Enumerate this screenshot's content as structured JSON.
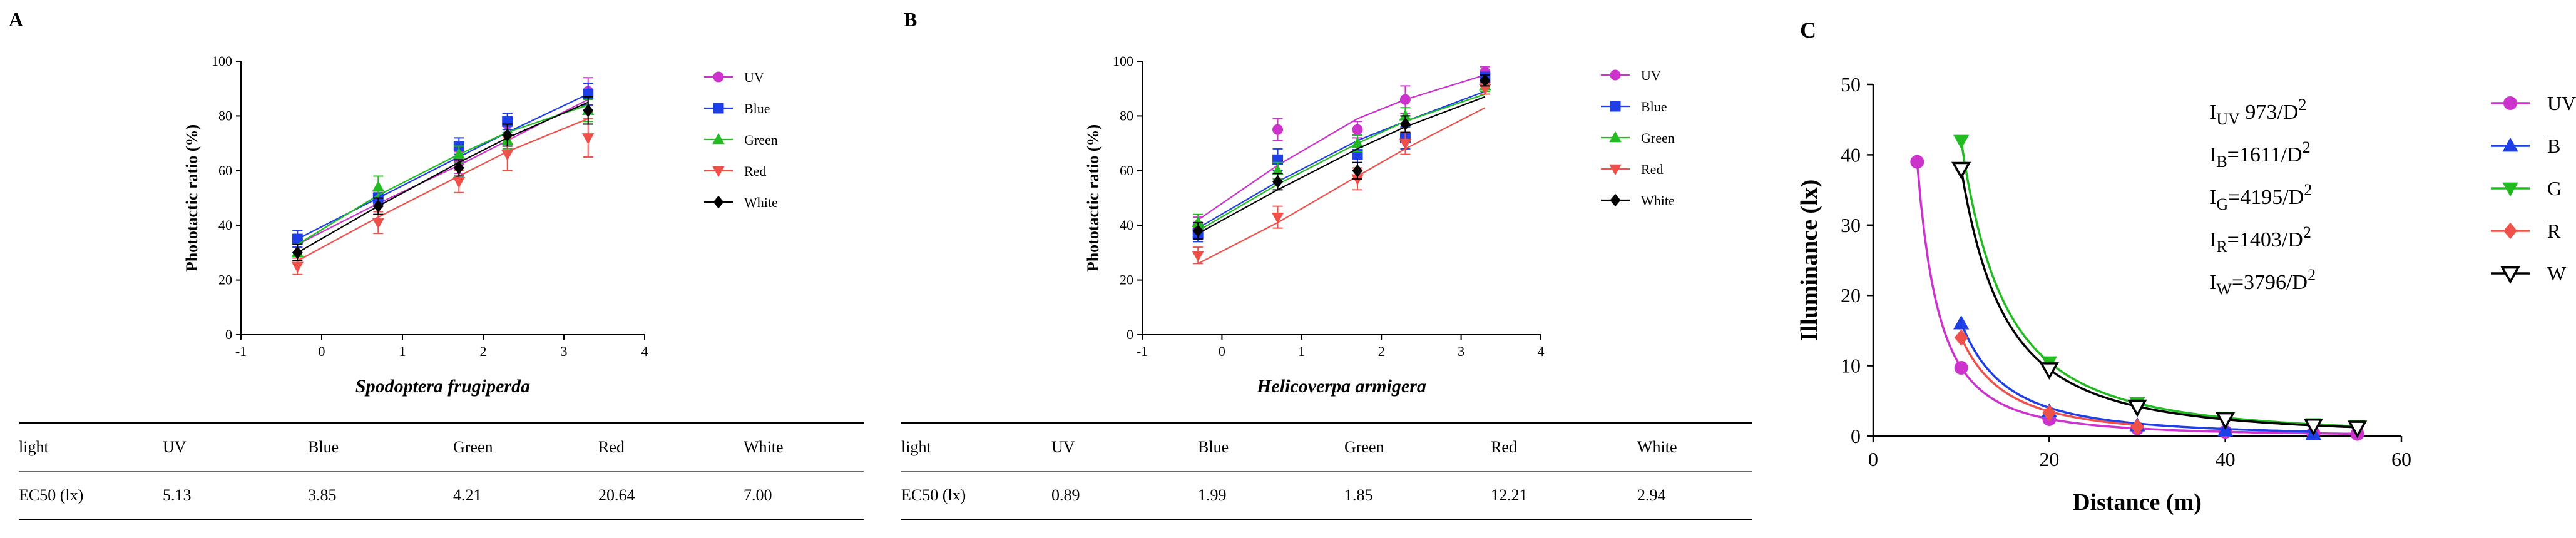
{
  "colors": {
    "UV": "#cc33cc",
    "Blue": "#1f3fe6",
    "Green": "#22bb22",
    "Red": "#f0504a",
    "White": "#000000"
  },
  "chart_data": [
    {
      "type": "scatter",
      "panel": "A",
      "title": "",
      "xlabel": "Spodoptera frugiperda",
      "ylabel": "Phototactic ratio (%)",
      "xlim": [
        -1,
        4
      ],
      "ylim": [
        0,
        100
      ],
      "xticks": [
        -1,
        0,
        1,
        2,
        3,
        4
      ],
      "yticks": [
        0,
        20,
        40,
        60,
        80,
        100
      ],
      "legend_position": "right",
      "series": [
        {
          "name": "UV",
          "key": "UV",
          "marker": "circle",
          "x": [
            -0.3,
            0.7,
            1.7,
            2.3,
            3.3
          ],
          "y": [
            35,
            48,
            63,
            77,
            89
          ],
          "err": [
            3,
            4,
            4,
            4,
            5
          ],
          "fit": [
            33,
            48,
            62,
            71,
            86
          ]
        },
        {
          "name": "Blue",
          "key": "Blue",
          "marker": "square",
          "x": [
            -0.3,
            0.7,
            1.7,
            2.3,
            3.3
          ],
          "y": [
            35,
            50,
            69,
            78,
            88
          ],
          "err": [
            3,
            3,
            3,
            3,
            4
          ],
          "fit": [
            35,
            50,
            65,
            74,
            88
          ]
        },
        {
          "name": "Green",
          "key": "Green",
          "marker": "triangle-up",
          "x": [
            -0.3,
            0.7,
            1.7,
            2.3,
            3.3
          ],
          "y": [
            30,
            54,
            66,
            71,
            82
          ],
          "err": [
            3,
            4,
            3,
            3,
            4
          ],
          "fit": [
            33,
            51,
            66,
            74,
            84
          ]
        },
        {
          "name": "Red",
          "key": "Red",
          "marker": "triangle-down",
          "x": [
            -0.3,
            0.7,
            1.7,
            2.3,
            3.3
          ],
          "y": [
            25,
            41,
            56,
            66,
            72
          ],
          "err": [
            3,
            4,
            4,
            6,
            7
          ],
          "fit": [
            27,
            43,
            58,
            67,
            79
          ]
        },
        {
          "name": "White",
          "key": "White",
          "marker": "diamond",
          "x": [
            -0.3,
            0.7,
            1.7,
            2.3,
            3.3
          ],
          "y": [
            30,
            47,
            61,
            73,
            82
          ],
          "err": [
            3,
            3,
            3,
            4,
            5
          ],
          "fit": [
            30,
            47,
            63,
            72,
            85
          ]
        }
      ]
    },
    {
      "type": "scatter",
      "panel": "B",
      "title": "",
      "xlabel": "Helicoverpa armigera",
      "ylabel": "Phototactic ratio (%)",
      "xlim": [
        -1,
        4
      ],
      "ylim": [
        0,
        100
      ],
      "xticks": [
        -1,
        0,
        1,
        2,
        3,
        4
      ],
      "yticks": [
        0,
        20,
        40,
        60,
        80,
        100
      ],
      "legend_position": "right",
      "series": [
        {
          "name": "UV",
          "key": "UV",
          "marker": "circle",
          "x": [
            -0.3,
            0.7,
            1.7,
            2.3,
            3.3
          ],
          "y": [
            40,
            75,
            75,
            86,
            96
          ],
          "err": [
            3,
            4,
            3,
            5,
            2
          ],
          "fit": [
            42,
            62,
            79,
            86,
            95
          ]
        },
        {
          "name": "Blue",
          "key": "Blue",
          "marker": "square",
          "x": [
            -0.3,
            0.7,
            1.7,
            2.3,
            3.3
          ],
          "y": [
            37,
            64,
            66,
            72,
            94
          ],
          "err": [
            3,
            4,
            3,
            4,
            2
          ],
          "fit": [
            39,
            56,
            71,
            78,
            89
          ]
        },
        {
          "name": "Green",
          "key": "Green",
          "marker": "triangle-up",
          "x": [
            -0.3,
            0.7,
            1.7,
            2.3,
            3.3
          ],
          "y": [
            41,
            60,
            70,
            80,
            91
          ],
          "err": [
            3,
            3,
            3,
            3,
            2
          ],
          "fit": [
            38,
            55,
            70,
            78,
            88
          ]
        },
        {
          "name": "Red",
          "key": "Red",
          "marker": "triangle-down",
          "x": [
            -0.3,
            0.7,
            1.7,
            2.3,
            3.3
          ],
          "y": [
            29,
            43,
            57,
            70,
            90
          ],
          "err": [
            3,
            4,
            4,
            4,
            2
          ],
          "fit": [
            26,
            41,
            58,
            68,
            83
          ]
        },
        {
          "name": "White",
          "key": "White",
          "marker": "diamond",
          "x": [
            -0.3,
            0.7,
            1.7,
            2.3,
            3.3
          ],
          "y": [
            38,
            56,
            60,
            77,
            93
          ],
          "err": [
            3,
            3,
            3,
            3,
            2
          ],
          "fit": [
            37,
            53,
            68,
            76,
            87
          ]
        }
      ]
    },
    {
      "type": "line",
      "panel": "C",
      "title": "",
      "xlabel": "Distance (m)",
      "ylabel": "Illuminance (lx)",
      "xlim": [
        0,
        60
      ],
      "ylim": [
        0,
        50
      ],
      "xticks": [
        0,
        20,
        40,
        60
      ],
      "yticks": [
        0,
        10,
        20,
        30,
        40,
        50
      ],
      "legend_position": "right",
      "annotations": [
        {
          "main": "I",
          "sub": "UV",
          "rest": "  973/D",
          "sup": "2"
        },
        {
          "main": "I",
          "sub": "B",
          "rest": "=1611/D",
          "sup": "2"
        },
        {
          "main": "I",
          "sub": "G",
          "rest": "=4195/D",
          "sup": "2"
        },
        {
          "main": "I",
          "sub": "R",
          "rest": "=1403/D",
          "sup": "2"
        },
        {
          "main": "I",
          "sub": "W",
          "rest": "=3796/D",
          "sup": "2"
        }
      ],
      "series": [
        {
          "name": "UV",
          "key": "UV",
          "marker": "circle",
          "coef": 973,
          "xstart": 5,
          "x": [
            5,
            10,
            20,
            30,
            40,
            50,
            55
          ],
          "y": [
            39,
            9.7,
            2.4,
            1.1,
            0.6,
            0.4,
            0.3
          ]
        },
        {
          "name": "B",
          "key": "Blue",
          "marker": "triangle-up",
          "coef": 1611,
          "xstart": 10,
          "x": [
            10,
            20,
            30,
            40,
            50
          ],
          "y": [
            16,
            3.5,
            1.5,
            0.8,
            0.3
          ]
        },
        {
          "name": "G",
          "key": "Green",
          "marker": "triangle-down",
          "coef": 4195,
          "xstart": 10,
          "x": [
            10,
            20,
            30,
            40,
            50,
            55
          ],
          "y": [
            42,
            10.5,
            4.7,
            2.6,
            1.7,
            1.4
          ]
        },
        {
          "name": "R",
          "key": "Red",
          "marker": "diamond",
          "coef": 1403,
          "xstart": 10,
          "x": [
            10,
            20,
            30
          ],
          "y": [
            14,
            3.3,
            1.3
          ]
        },
        {
          "name": "W",
          "key": "White",
          "marker": "triangle-down-open",
          "coef": 3796,
          "xstart": 10,
          "x": [
            10,
            20,
            30,
            40,
            50,
            55
          ],
          "y": [
            38,
            9.5,
            4.2,
            2.4,
            1.5,
            1.2
          ]
        }
      ]
    }
  ],
  "tableA": {
    "headers": [
      "light",
      "UV",
      "Blue",
      "Green",
      "Red",
      "White"
    ],
    "values": [
      "EC50 (lx)",
      "5.13",
      "3.85",
      "4.21",
      "20.64",
      "7.00"
    ]
  },
  "tableB": {
    "headers": [
      "light",
      "UV",
      "Blue",
      "Green",
      "Red",
      "White"
    ],
    "values": [
      "EC50 (lx)",
      "0.89",
      "1.99",
      "1.85",
      "12.21",
      "2.94"
    ]
  }
}
